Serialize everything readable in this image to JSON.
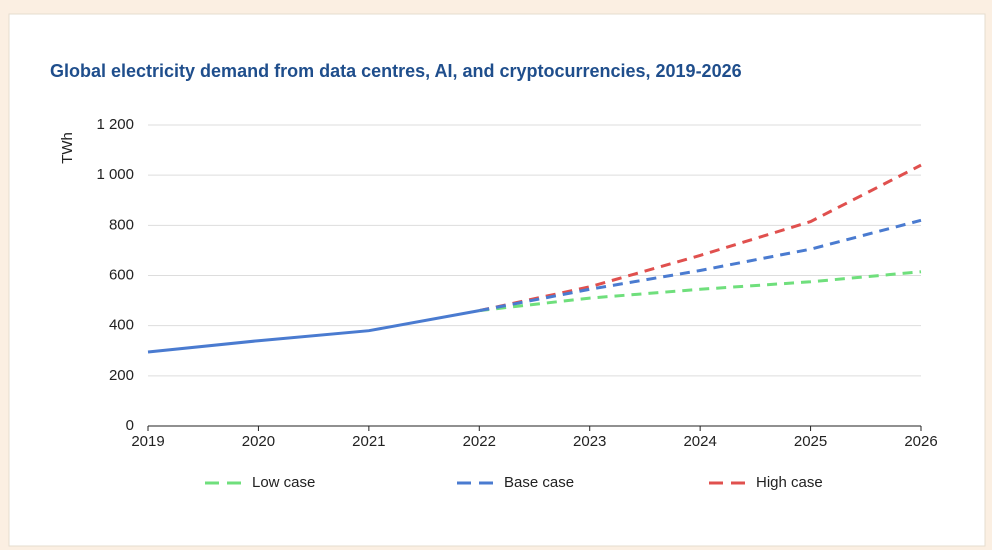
{
  "chart_data": {
    "type": "line",
    "title": "Global electricity demand from data centres, AI, and cryptocurrencies, 2019-2026",
    "y_label": "TWh",
    "categories": [
      "2019",
      "2020",
      "2021",
      "2022",
      "2023",
      "2024",
      "2025",
      "2026"
    ],
    "series": [
      {
        "color": "#4a7bd0",
        "dashed": false,
        "values": [
          295,
          340,
          380,
          460,
          null,
          null,
          null,
          null
        ]
      },
      {
        "name": "Low case",
        "color": "#6fdf7c",
        "dashed": true,
        "values": [
          null,
          null,
          null,
          460,
          510,
          545,
          575,
          615
        ]
      },
      {
        "name": "Base case",
        "color": "#4a7bd0",
        "dashed": true,
        "values": [
          null,
          null,
          null,
          460,
          545,
          620,
          705,
          820
        ]
      },
      {
        "name": "High case",
        "color": "#e0504e",
        "dashed": true,
        "values": [
          null,
          null,
          null,
          460,
          555,
          680,
          815,
          1040
        ]
      }
    ],
    "ylim": [
      0,
      1200
    ],
    "yticks": [
      0,
      200,
      400,
      600,
      800,
      {
        "value": 1000,
        "label": "1 000"
      },
      {
        "value": 1200,
        "label": "1 200"
      }
    ],
    "grid": true,
    "legend": "bottom"
  }
}
